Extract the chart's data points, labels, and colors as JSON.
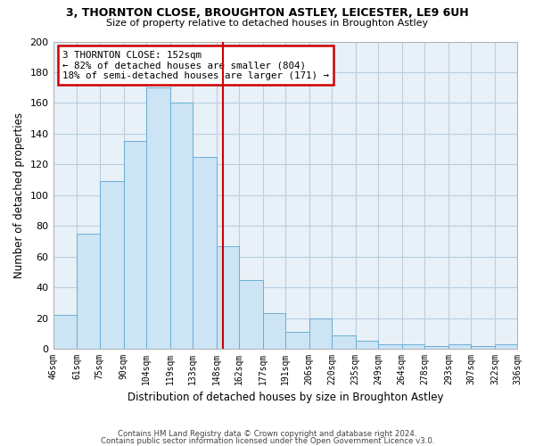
{
  "title1": "3, THORNTON CLOSE, BROUGHTON ASTLEY, LEICESTER, LE9 6UH",
  "title2": "Size of property relative to detached houses in Broughton Astley",
  "xlabel": "Distribution of detached houses by size in Broughton Astley",
  "ylabel": "Number of detached properties",
  "bin_labels": [
    "46sqm",
    "61sqm",
    "75sqm",
    "90sqm",
    "104sqm",
    "119sqm",
    "133sqm",
    "148sqm",
    "162sqm",
    "177sqm",
    "191sqm",
    "206sqm",
    "220sqm",
    "235sqm",
    "249sqm",
    "264sqm",
    "278sqm",
    "293sqm",
    "307sqm",
    "322sqm",
    "336sqm"
  ],
  "bin_edges": [
    46,
    61,
    75,
    90,
    104,
    119,
    133,
    148,
    162,
    177,
    191,
    206,
    220,
    235,
    249,
    264,
    278,
    293,
    307,
    322,
    336
  ],
  "bar_heights": [
    22,
    75,
    109,
    135,
    170,
    160,
    125,
    67,
    45,
    23,
    11,
    20,
    9,
    5,
    3,
    3,
    2,
    3,
    2,
    3
  ],
  "bar_color": "#cce4f4",
  "bar_edge_color": "#6aaed6",
  "property_line_x": 152,
  "property_line_color": "#cc0000",
  "annotation_title": "3 THORNTON CLOSE: 152sqm",
  "annotation_line1": "← 82% of detached houses are smaller (804)",
  "annotation_line2": "18% of semi-detached houses are larger (171) →",
  "annotation_box_edgecolor": "#cc0000",
  "annotation_box_facecolor": "#ffffff",
  "ylim": [
    0,
    200
  ],
  "yticks": [
    0,
    20,
    40,
    60,
    80,
    100,
    120,
    140,
    160,
    180,
    200
  ],
  "bg_color": "#e8f0f8",
  "footer1": "Contains HM Land Registry data © Crown copyright and database right 2024.",
  "footer2": "Contains public sector information licensed under the Open Government Licence v3.0."
}
